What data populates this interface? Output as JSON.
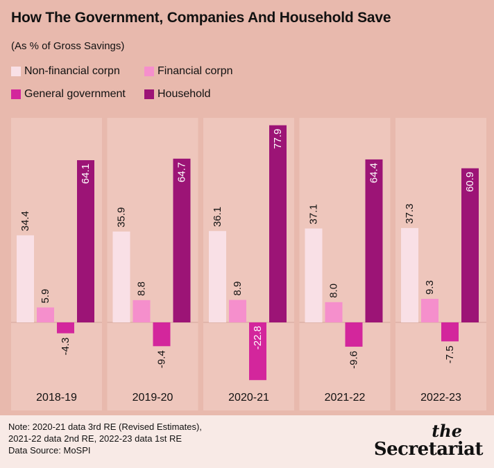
{
  "title": "How The Government, Companies And Household Save",
  "subtitle": "(As % of Gross Savings)",
  "footer": {
    "note_lines": [
      "Note: 2020-21 data 3rd RE (Revised Estimates),",
      "2021-22 data 2nd RE, 2022-23 data 1st RE",
      "Data Source: MoSPI"
    ],
    "logo_the": "the",
    "logo_name": "Secretariat"
  },
  "colors": {
    "background": "#e8b9ad",
    "panel": "#eec6bc",
    "non_financial": "#f9e0e6",
    "financial": "#f58fcc",
    "government": "#d3269c",
    "household": "#9c1476"
  },
  "chart_data": {
    "type": "bar",
    "title": "How The Government, Companies And Household Save",
    "subtitle": "(As % of Gross Savings)",
    "categories": [
      "2018-19",
      "2019-20",
      "2020-21",
      "2021-22",
      "2022-23"
    ],
    "series": [
      {
        "name": "Non-financial corpn",
        "values": [
          34.4,
          35.9,
          36.1,
          37.1,
          37.3
        ],
        "labels": [
          "34.4",
          "35.9",
          "36.1",
          "37.1",
          "37.3"
        ],
        "color": "#f9e0e6"
      },
      {
        "name": "Financial corpn",
        "values": [
          5.9,
          8.8,
          8.9,
          8.0,
          9.3
        ],
        "labels": [
          "5.9",
          "8.8",
          "8.9",
          "8.0",
          "9.3"
        ],
        "color": "#f58fcc"
      },
      {
        "name": "General government",
        "values": [
          -4.3,
          -9.4,
          -22.8,
          -9.6,
          -7.5
        ],
        "labels": [
          "-4.3",
          "-9.4",
          "-22.8",
          "-9.6",
          "-7.5"
        ],
        "color": "#d3269c"
      },
      {
        "name": "Household",
        "values": [
          64.1,
          64.7,
          77.9,
          64.4,
          60.9
        ],
        "labels": [
          "64.1",
          "64.7",
          "77.9",
          "64.4",
          "60.9"
        ],
        "color": "#9c1476"
      }
    ],
    "xlabel": "",
    "ylabel": "",
    "ylim": [
      -22.8,
      77.9
    ],
    "grid": false,
    "legend": "top-left",
    "data_labels": "rotated"
  }
}
